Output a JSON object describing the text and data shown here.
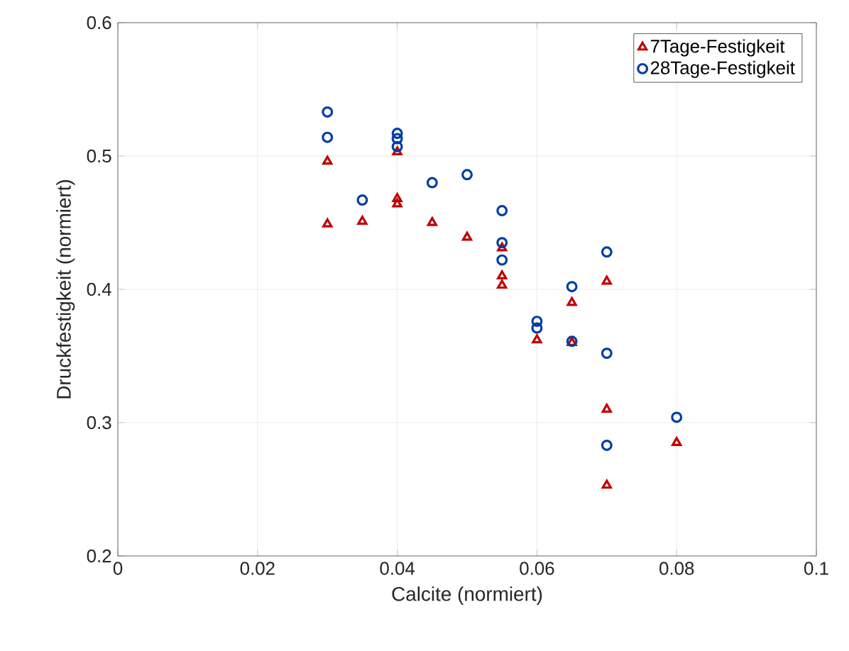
{
  "chart_data": {
    "type": "scatter",
    "xlabel": "Calcite (normiert)",
    "ylabel": "Druckfestigkeit (normiert)",
    "xlim": [
      0,
      0.1
    ],
    "ylim": [
      0.2,
      0.6
    ],
    "xticks": [
      0,
      0.02,
      0.04,
      0.06,
      0.08,
      0.1
    ],
    "yticks": [
      0.2,
      0.3,
      0.4,
      0.5,
      0.6
    ],
    "grid": true,
    "legend": "top right",
    "series": [
      {
        "name": "7Tage-Festigkeit",
        "color": "#c00000",
        "marker": "triangle",
        "x": [
          0.03,
          0.03,
          0.035,
          0.04,
          0.04,
          0.04,
          0.045,
          0.05,
          0.055,
          0.055,
          0.055,
          0.06,
          0.065,
          0.065,
          0.07,
          0.07,
          0.07,
          0.08
        ],
        "values": [
          0.496,
          0.449,
          0.451,
          0.503,
          0.468,
          0.464,
          0.45,
          0.439,
          0.431,
          0.41,
          0.403,
          0.362,
          0.39,
          0.36,
          0.406,
          0.31,
          0.253,
          0.285
        ]
      },
      {
        "name": "28Tage-Festigkeit",
        "color": "#003da5",
        "marker": "circle",
        "x": [
          0.03,
          0.03,
          0.035,
          0.04,
          0.04,
          0.04,
          0.045,
          0.05,
          0.055,
          0.055,
          0.055,
          0.06,
          0.06,
          0.065,
          0.065,
          0.07,
          0.07,
          0.07,
          0.08
        ],
        "values": [
          0.533,
          0.514,
          0.467,
          0.517,
          0.513,
          0.507,
          0.48,
          0.486,
          0.459,
          0.435,
          0.422,
          0.376,
          0.371,
          0.402,
          0.361,
          0.428,
          0.352,
          0.283,
          0.304
        ]
      }
    ]
  }
}
